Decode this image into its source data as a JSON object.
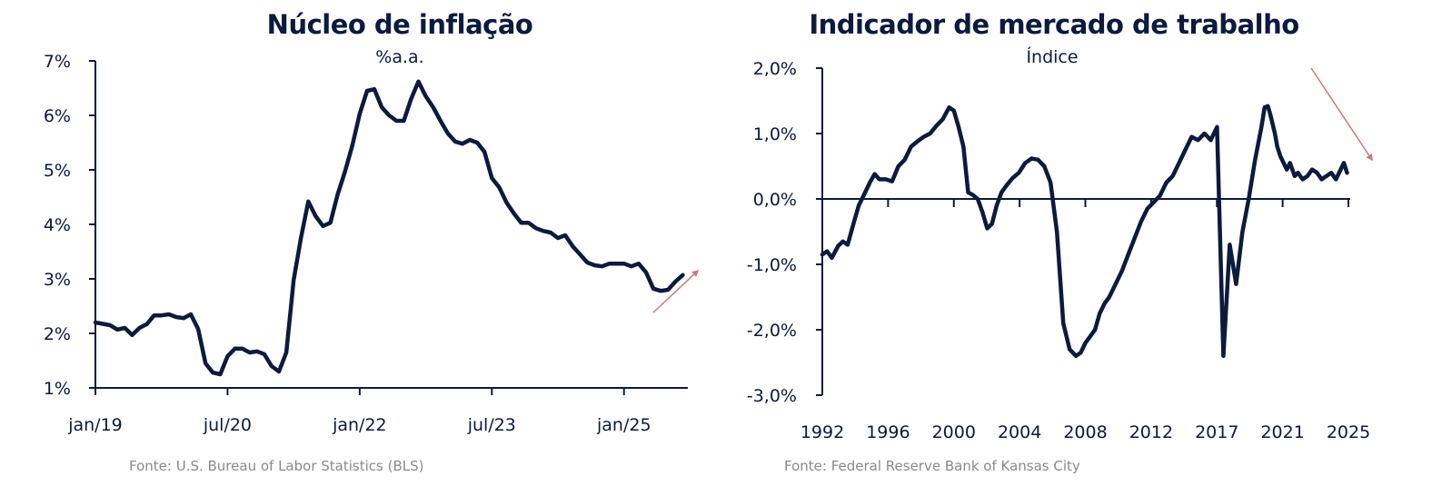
{
  "chart_data": [
    {
      "type": "line",
      "title": "Núcleo de inflação",
      "subtitle": "%a.a.",
      "xlabel": "",
      "ylabel": "",
      "source": "Fonte: U.S. Bureau of Labor Statistics (BLS)",
      "x_tick_labels": [
        "jan/19",
        "jul/20",
        "jan/22",
        "jul/23",
        "jan/25"
      ],
      "y_tick_labels": [
        "1%",
        "2%",
        "3%",
        "4%",
        "5%",
        "6%",
        "7%"
      ],
      "ylim": [
        1,
        7
      ],
      "xlim_months_from_jan19": [
        0,
        81
      ],
      "grid": false,
      "line_color": "#0c1a3d",
      "annotation": {
        "type": "arrow",
        "direction": "up",
        "color": "#c97b7b"
      },
      "series": [
        {
          "name": "Núcleo de inflação",
          "x_months_from_jan19": [
            0,
            2,
            3,
            4,
            5,
            6,
            7,
            8,
            9,
            10,
            11,
            12,
            13,
            14,
            15,
            16,
            17,
            18,
            19,
            20,
            21,
            22,
            23,
            24,
            25,
            26,
            27,
            28,
            29,
            30,
            31,
            32,
            33,
            34,
            35,
            36,
            37,
            38,
            39,
            40,
            41,
            42,
            43,
            44,
            45,
            46,
            47,
            48,
            49,
            50,
            51,
            52,
            53,
            54,
            55,
            56,
            57,
            58,
            59,
            60,
            61,
            62,
            63,
            64,
            65,
            66,
            67,
            68,
            69,
            70,
            71,
            72,
            73,
            74,
            75,
            76,
            77,
            78,
            79,
            80
          ],
          "values": [
            2.2,
            2.15,
            2.07,
            2.1,
            1.97,
            2.1,
            2.17,
            2.33,
            2.33,
            2.35,
            2.3,
            2.28,
            2.35,
            2.08,
            1.45,
            1.28,
            1.25,
            1.58,
            1.72,
            1.72,
            1.65,
            1.67,
            1.62,
            1.4,
            1.3,
            1.65,
            2.98,
            3.75,
            4.42,
            4.15,
            3.97,
            4.03,
            4.55,
            4.97,
            5.45,
            6.03,
            6.45,
            6.48,
            6.15,
            6.0,
            5.9,
            5.9,
            6.3,
            6.62,
            6.35,
            6.15,
            5.9,
            5.67,
            5.52,
            5.48,
            5.55,
            5.5,
            5.33,
            4.85,
            4.68,
            4.4,
            4.2,
            4.03,
            4.03,
            3.93,
            3.88,
            3.85,
            3.75,
            3.8,
            3.6,
            3.45,
            3.3,
            3.25,
            3.23,
            3.28,
            3.28,
            3.28,
            3.23,
            3.28,
            3.12,
            2.82,
            2.78,
            2.8,
            2.95,
            3.07
          ]
        }
      ]
    },
    {
      "type": "line",
      "title": "Indicador de mercado de trabalho",
      "subtitle": "Índice",
      "xlabel": "",
      "ylabel": "",
      "source": "Fonte: Federal Reserve Bank of Kansas City",
      "x_tick_labels": [
        "1992",
        "1996",
        "2000",
        "2004",
        "2008",
        "2012",
        "2017",
        "2021",
        "2025"
      ],
      "y_tick_labels": [
        "-3,0%",
        "-2,0%",
        "-1,0%",
        "0,0%",
        "1,0%",
        "2,0%"
      ],
      "ylim": [
        -3,
        2
      ],
      "xlim": [
        1992,
        2025.3
      ],
      "grid": false,
      "line_color": "#0c1a3d",
      "annotation": {
        "type": "arrow",
        "direction": "down",
        "color": "#c97b7b"
      },
      "series": [
        {
          "name": "Indicador de mercado de trabalho",
          "x": [
            1992.0,
            1992.3,
            1992.6,
            1993.0,
            1993.3,
            1993.6,
            1994.0,
            1994.3,
            1994.6,
            1995.0,
            1995.3,
            1995.6,
            1996.0,
            1996.4,
            1996.8,
            1997.2,
            1997.6,
            1998.0,
            1998.4,
            1998.8,
            1999.2,
            1999.6,
            2000.0,
            2000.3,
            2000.6,
            2000.9,
            2001.2,
            2001.5,
            2001.8,
            2002.1,
            2002.4,
            2002.7,
            2003.0,
            2003.3,
            2003.6,
            2004.0,
            2004.4,
            2004.8,
            2005.2,
            2005.6,
            2006.0,
            2006.4,
            2006.8,
            2007.2,
            2007.6,
            2008.0,
            2008.3,
            2008.6,
            2008.9,
            2009.2,
            2009.5,
            2009.8,
            2010.1,
            2010.5,
            2010.9,
            2011.3,
            2011.7,
            2012.1,
            2012.5,
            2012.9,
            2013.3,
            2013.7,
            2014.1,
            2014.5,
            2014.9,
            2015.3,
            2015.7,
            2016.1,
            2016.5,
            2016.9,
            2017.3,
            2017.7,
            2018.1,
            2018.5,
            2018.9,
            2019.3,
            2019.7,
            2019.9,
            2020.1,
            2020.25,
            2020.4,
            2020.55,
            2020.7,
            2020.9,
            2021.1,
            2021.3,
            2021.5,
            2021.8,
            2022.0,
            2022.3,
            2022.6,
            2022.9,
            2023.2,
            2023.5,
            2023.8,
            2024.1,
            2024.4,
            2024.7,
            2024.9,
            2025.1
          ],
          "values": [
            -0.85,
            -0.8,
            -0.9,
            -0.72,
            -0.65,
            -0.7,
            -0.35,
            -0.1,
            0.05,
            0.25,
            0.38,
            0.3,
            0.3,
            0.27,
            0.5,
            0.6,
            0.8,
            0.88,
            0.95,
            1.0,
            1.12,
            1.22,
            1.4,
            1.35,
            1.1,
            0.8,
            0.1,
            0.06,
            0.0,
            -0.2,
            -0.45,
            -0.38,
            -0.1,
            0.1,
            0.2,
            0.32,
            0.4,
            0.55,
            0.62,
            0.6,
            0.5,
            0.25,
            -0.5,
            -1.9,
            -2.3,
            -2.4,
            -2.35,
            -2.2,
            -2.1,
            -2.0,
            -1.75,
            -1.6,
            -1.5,
            -1.3,
            -1.1,
            -0.85,
            -0.6,
            -0.35,
            -0.15,
            -0.05,
            0.05,
            0.25,
            0.35,
            0.55,
            0.75,
            0.95,
            0.9,
            1.0,
            0.9,
            1.1,
            -2.4,
            -0.7,
            -1.3,
            -0.5,
            0.0,
            0.6,
            1.1,
            1.4,
            1.42,
            1.3,
            1.15,
            1.0,
            0.8,
            0.65,
            0.55,
            0.45,
            0.55,
            0.35,
            0.4,
            0.3,
            0.35,
            0.45,
            0.4,
            0.3,
            0.35,
            0.4,
            0.3,
            0.45,
            0.55,
            0.4
          ]
        }
      ]
    }
  ]
}
